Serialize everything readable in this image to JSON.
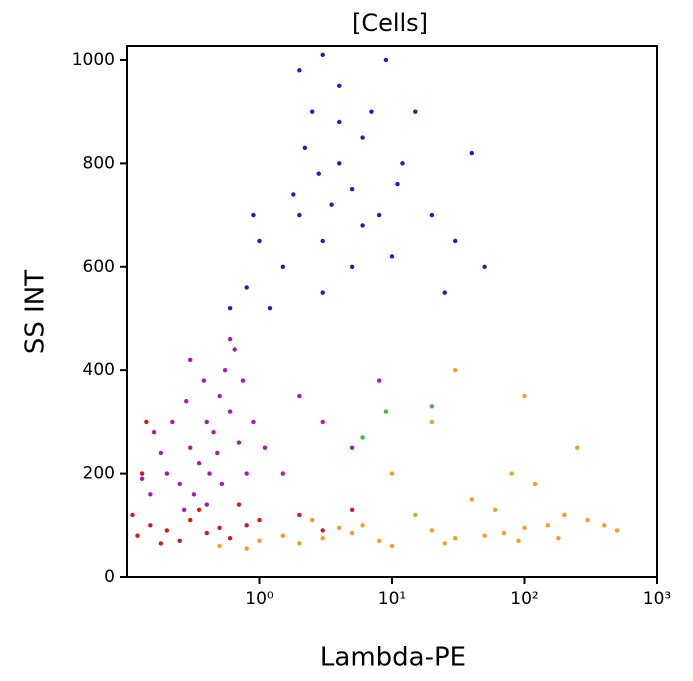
{
  "chart_data": {
    "type": "scatter",
    "title": "[Cells]",
    "x_label": "Lambda-PE",
    "y_label": "SS INT",
    "xscale": "log",
    "xlim": [
      0.1,
      1000
    ],
    "xticks": [
      {
        "value": 1,
        "label": "10⁰"
      },
      {
        "value": 10,
        "label": "10¹"
      },
      {
        "value": 100,
        "label": "10²"
      },
      {
        "value": 1000,
        "label": "10³"
      }
    ],
    "ylim": [
      0,
      1027
    ],
    "yticks": [
      0,
      200,
      400,
      600,
      800,
      1000
    ],
    "series": [
      {
        "color": "#1c1ccc",
        "x": [
          2,
          3,
          4,
          2.5,
          5,
          1.5,
          3,
          6,
          8,
          10,
          1.2,
          0.8,
          2,
          4,
          7,
          12,
          20,
          30,
          3.5,
          2.8,
          5,
          1,
          0.6,
          15,
          9,
          4,
          6,
          2.2,
          25,
          50,
          3,
          1.8,
          11,
          0.9,
          40
        ],
        "values": [
          700,
          650,
          800,
          900,
          750,
          600,
          550,
          850,
          700,
          620,
          520,
          560,
          980,
          950,
          900,
          800,
          700,
          650,
          720,
          780,
          600,
          650,
          520,
          900,
          1000,
          880,
          680,
          830,
          550,
          600,
          1010,
          740,
          760,
          700,
          820
        ]
      },
      {
        "color": "#ff9a1c",
        "x": [
          1,
          1.5,
          2,
          3,
          5,
          8,
          10,
          20,
          30,
          50,
          70,
          100,
          150,
          200,
          300,
          500,
          40,
          80,
          120,
          250,
          15,
          6,
          60,
          0.5,
          0.8,
          4,
          25,
          90,
          2.5,
          180,
          400,
          10,
          20,
          30,
          100
        ],
        "values": [
          70,
          80,
          65,
          75,
          85,
          70,
          60,
          90,
          75,
          80,
          85,
          95,
          100,
          120,
          110,
          90,
          150,
          200,
          180,
          250,
          120,
          100,
          130,
          60,
          55,
          95,
          65,
          70,
          110,
          75,
          100,
          200,
          300,
          400,
          350
        ]
      },
      {
        "color": "#e01414",
        "x": [
          0.12,
          0.15,
          0.2,
          0.25,
          0.3,
          0.4,
          0.5,
          0.6,
          0.8,
          0.11,
          0.18,
          0.35,
          1,
          2,
          3,
          5,
          0.7,
          0.14,
          0.13
        ],
        "values": [
          80,
          100,
          90,
          70,
          110,
          85,
          95,
          75,
          100,
          120,
          65,
          130,
          110,
          120,
          90,
          130,
          140,
          300,
          200
        ]
      },
      {
        "color": "#b414b4",
        "x": [
          0.2,
          0.3,
          0.4,
          0.5,
          0.25,
          0.35,
          0.45,
          0.55,
          0.6,
          0.7,
          0.8,
          0.15,
          0.18,
          0.22,
          0.28,
          0.32,
          0.38,
          0.42,
          0.48,
          0.52,
          0.65,
          0.75,
          0.9,
          1.1,
          0.3,
          0.16,
          0.13,
          0.6,
          2,
          3,
          5,
          8,
          1.5,
          0.4,
          0.27
        ],
        "values": [
          200,
          250,
          300,
          350,
          180,
          220,
          280,
          400,
          320,
          260,
          200,
          160,
          240,
          300,
          340,
          160,
          380,
          200,
          240,
          180,
          440,
          380,
          300,
          250,
          420,
          280,
          190,
          460,
          350,
          300,
          250,
          380,
          200,
          140,
          130
        ]
      },
      {
        "color": "#30c030",
        "x": [
          20,
          9,
          6
        ],
        "values": [
          330,
          320,
          270
        ]
      }
    ]
  }
}
